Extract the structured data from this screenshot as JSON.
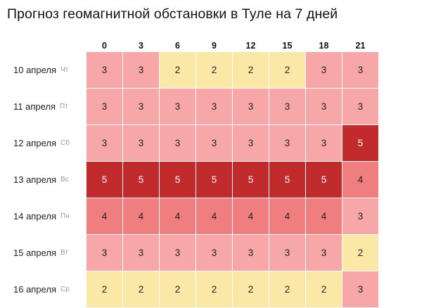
{
  "title": "Прогноз геомагнитной обстановки в Туле на 7 дней",
  "hours": [
    "0",
    "3",
    "6",
    "9",
    "12",
    "15",
    "18",
    "21"
  ],
  "colors": {
    "2": "#fbe8a6",
    "3": "#f7a7a7",
    "4": "#f07e7e",
    "5": "#c12b2b"
  },
  "rows": [
    {
      "date": "10 апреля",
      "weekday": "Чт",
      "values": [
        "3",
        "3",
        "2",
        "2",
        "2",
        "2",
        "3",
        "3"
      ]
    },
    {
      "date": "11 апреля",
      "weekday": "Пт",
      "values": [
        "3",
        "3",
        "3",
        "3",
        "3",
        "3",
        "3",
        "3"
      ]
    },
    {
      "date": "12 апреля",
      "weekday": "Сб",
      "values": [
        "3",
        "3",
        "3",
        "3",
        "3",
        "3",
        "3",
        "5"
      ]
    },
    {
      "date": "13 апреля",
      "weekday": "Вс",
      "values": [
        "5",
        "5",
        "5",
        "5",
        "5",
        "5",
        "5",
        "4"
      ]
    },
    {
      "date": "14 апреля",
      "weekday": "Пн",
      "values": [
        "4",
        "4",
        "4",
        "4",
        "4",
        "4",
        "4",
        "3"
      ]
    },
    {
      "date": "15 апреля",
      "weekday": "Вт",
      "values": [
        "3",
        "3",
        "3",
        "3",
        "3",
        "3",
        "3",
        "2"
      ]
    },
    {
      "date": "16 апреля",
      "weekday": "Ср",
      "values": [
        "2",
        "2",
        "2",
        "2",
        "2",
        "2",
        "2",
        "3"
      ]
    }
  ]
}
